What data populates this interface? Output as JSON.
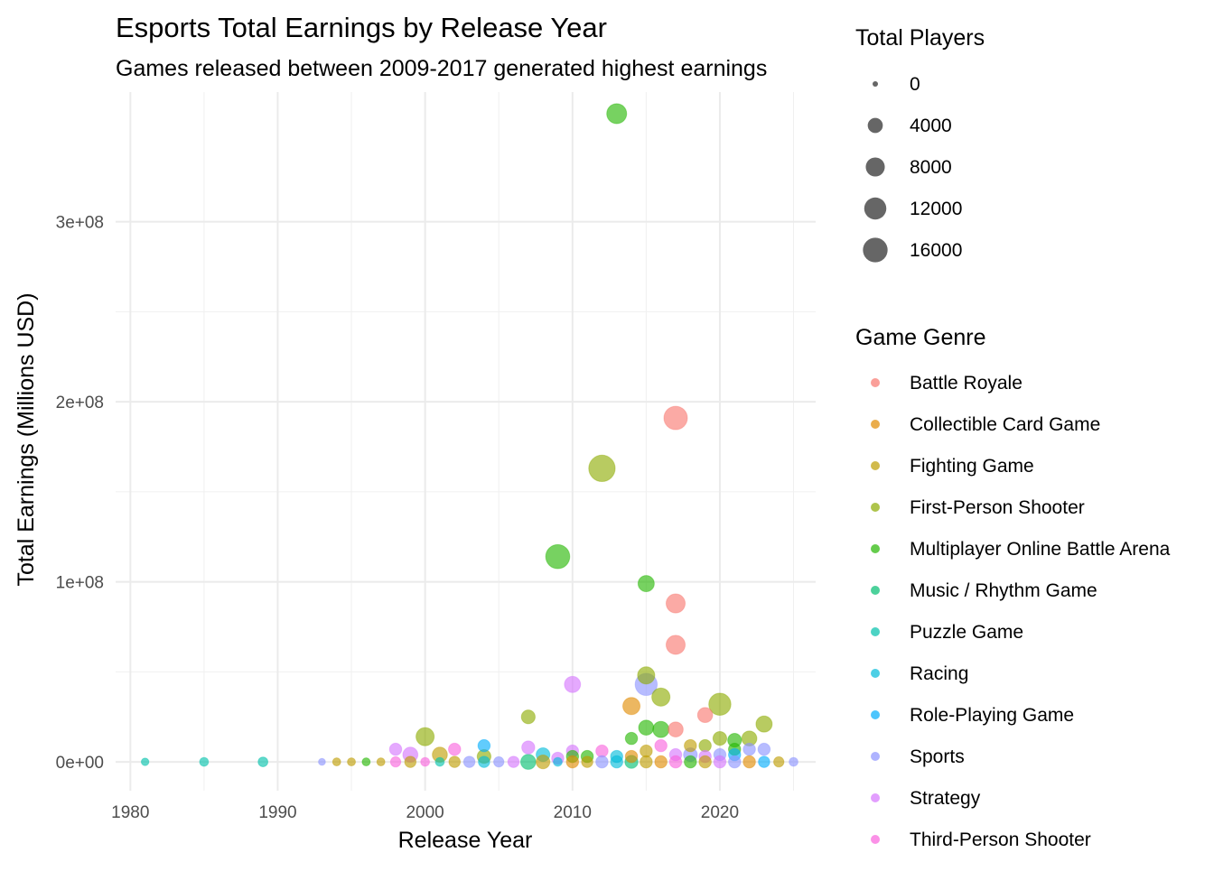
{
  "chart_data": {
    "type": "scatter",
    "title": "Esports Total Earnings by Release Year",
    "subtitle": "Games released between 2009-2017 generated highest earnings",
    "xlabel": "Release Year",
    "ylabel": "Total Earnings (Millions USD)",
    "xlim": [
      1979,
      2026.5
    ],
    "ylim": [
      -16000000,
      372000000
    ],
    "x_ticks": [
      1980,
      1990,
      2000,
      2010,
      2020
    ],
    "x_tick_labels": [
      "1980",
      "1990",
      "2000",
      "2010",
      "2020"
    ],
    "y_ticks": [
      0,
      100000000,
      200000000,
      300000000
    ],
    "y_tick_labels": [
      "0e+00",
      "1e+08",
      "2e+08",
      "3e+08"
    ],
    "grid": true,
    "legend_position": "right",
    "size_legend": {
      "title": "Total Players",
      "values": [
        0,
        4000,
        8000,
        12000,
        16000
      ],
      "labels": [
        "0",
        "4000",
        "8000",
        "12000",
        "16000"
      ]
    },
    "color_legend": {
      "title": "Game Genre",
      "entries": [
        {
          "name": "Battle Royale",
          "color": "#F8766D"
        },
        {
          "name": "Collectible Card Game",
          "color": "#E18A00"
        },
        {
          "name": "Fighting Game",
          "color": "#BE9C00"
        },
        {
          "name": "First-Person Shooter",
          "color": "#8CAB00"
        },
        {
          "name": "Multiplayer Online Battle Arena",
          "color": "#24B700"
        },
        {
          "name": "Music / Rhythm Game",
          "color": "#00BE70"
        },
        {
          "name": "Puzzle Game",
          "color": "#00C1AB"
        },
        {
          "name": "Racing",
          "color": "#00BBDA"
        },
        {
          "name": "Role-Playing Game",
          "color": "#00ACFC"
        },
        {
          "name": "Sports",
          "color": "#8B93FF"
        },
        {
          "name": "Strategy",
          "color": "#D575FE"
        },
        {
          "name": "Third-Person Shooter",
          "color": "#F962DD"
        }
      ]
    },
    "points": [
      {
        "x": 2013,
        "y": 360000000,
        "players": 9000,
        "genre": "Multiplayer Online Battle Arena"
      },
      {
        "x": 2017,
        "y": 191000000,
        "players": 14000,
        "genre": "Battle Royale"
      },
      {
        "x": 2012,
        "y": 163000000,
        "players": 19000,
        "genre": "First-Person Shooter"
      },
      {
        "x": 2009,
        "y": 114000000,
        "players": 15000,
        "genre": "Multiplayer Online Battle Arena"
      },
      {
        "x": 2015,
        "y": 99000000,
        "players": 5000,
        "genre": "Multiplayer Online Battle Arena"
      },
      {
        "x": 2017,
        "y": 88000000,
        "players": 8000,
        "genre": "Battle Royale"
      },
      {
        "x": 2017,
        "y": 65000000,
        "players": 8000,
        "genre": "Battle Royale"
      },
      {
        "x": 2015,
        "y": 48000000,
        "players": 6000,
        "genre": "First-Person Shooter"
      },
      {
        "x": 2015,
        "y": 43000000,
        "players": 12000,
        "genre": "Sports"
      },
      {
        "x": 2010,
        "y": 43000000,
        "players": 5000,
        "genre": "Strategy"
      },
      {
        "x": 2016,
        "y": 36000000,
        "players": 7000,
        "genre": "First-Person Shooter"
      },
      {
        "x": 2020,
        "y": 32000000,
        "players": 12000,
        "genre": "First-Person Shooter"
      },
      {
        "x": 2014,
        "y": 31000000,
        "players": 6000,
        "genre": "Collectible Card Game"
      },
      {
        "x": 2019,
        "y": 26000000,
        "players": 4000,
        "genre": "Battle Royale"
      },
      {
        "x": 2007,
        "y": 25000000,
        "players": 3000,
        "genre": "First-Person Shooter"
      },
      {
        "x": 2023,
        "y": 21000000,
        "players": 5000,
        "genre": "First-Person Shooter"
      },
      {
        "x": 2015,
        "y": 19000000,
        "players": 4000,
        "genre": "Multiplayer Online Battle Arena"
      },
      {
        "x": 2016,
        "y": 18000000,
        "players": 5000,
        "genre": "Multiplayer Online Battle Arena"
      },
      {
        "x": 2017,
        "y": 18000000,
        "players": 4000,
        "genre": "Battle Royale"
      },
      {
        "x": 2000,
        "y": 14000000,
        "players": 7000,
        "genre": "First-Person Shooter"
      },
      {
        "x": 2014,
        "y": 13000000,
        "players": 2000,
        "genre": "Multiplayer Online Battle Arena"
      },
      {
        "x": 2020,
        "y": 13000000,
        "players": 3000,
        "genre": "First-Person Shooter"
      },
      {
        "x": 2022,
        "y": 13000000,
        "players": 4000,
        "genre": "First-Person Shooter"
      },
      {
        "x": 2021,
        "y": 12000000,
        "players": 3000,
        "genre": "Multiplayer Online Battle Arena"
      },
      {
        "x": 2004,
        "y": 9000000,
        "players": 2000,
        "genre": "Role-Playing Game"
      },
      {
        "x": 2016,
        "y": 9000000,
        "players": 2000,
        "genre": "Third-Person Shooter"
      },
      {
        "x": 2018,
        "y": 9000000,
        "players": 2000,
        "genre": "Fighting Game"
      },
      {
        "x": 2019,
        "y": 9000000,
        "players": 2000,
        "genre": "First-Person Shooter"
      },
      {
        "x": 1998,
        "y": 7000000,
        "players": 2000,
        "genre": "Strategy"
      },
      {
        "x": 2007,
        "y": 8000000,
        "players": 2500,
        "genre": "Strategy"
      },
      {
        "x": 2002,
        "y": 7000000,
        "players": 2000,
        "genre": "Third-Person Shooter"
      },
      {
        "x": 2010,
        "y": 6000000,
        "players": 2000,
        "genre": "Strategy"
      },
      {
        "x": 2012,
        "y": 6000000,
        "players": 2000,
        "genre": "Third-Person Shooter"
      },
      {
        "x": 2021,
        "y": 7000000,
        "players": 2000,
        "genre": "Multiplayer Online Battle Arena"
      },
      {
        "x": 2022,
        "y": 7000000,
        "players": 2000,
        "genre": "Sports"
      },
      {
        "x": 2023,
        "y": 7000000,
        "players": 2000,
        "genre": "Sports"
      },
      {
        "x": 2015,
        "y": 6000000,
        "players": 2000,
        "genre": "Fighting Game"
      },
      {
        "x": 1999,
        "y": 4000000,
        "players": 4000,
        "genre": "Strategy"
      },
      {
        "x": 2001,
        "y": 4000000,
        "players": 4000,
        "genre": "Fighting Game"
      },
      {
        "x": 2004,
        "y": 3000000,
        "players": 3000,
        "genre": "First-Person Shooter"
      },
      {
        "x": 2008,
        "y": 4000000,
        "players": 3000,
        "genre": "Racing"
      },
      {
        "x": 2010,
        "y": 3000000,
        "players": 2000,
        "genre": "Multiplayer Online Battle Arena"
      },
      {
        "x": 2011,
        "y": 3000000,
        "players": 2000,
        "genre": "Multiplayer Online Battle Arena"
      },
      {
        "x": 2013,
        "y": 3000000,
        "players": 2000,
        "genre": "Racing"
      },
      {
        "x": 2014,
        "y": 3000000,
        "players": 2000,
        "genre": "Collectible Card Game"
      },
      {
        "x": 2018,
        "y": 4000000,
        "players": 3000,
        "genre": "Sports"
      },
      {
        "x": 2020,
        "y": 4000000,
        "players": 2000,
        "genre": "Sports"
      },
      {
        "x": 2021,
        "y": 4000000,
        "players": 2000,
        "genre": "Role-Playing Game"
      },
      {
        "x": 2017,
        "y": 4000000,
        "players": 2000,
        "genre": "Strategy"
      },
      {
        "x": 2019,
        "y": 3000000,
        "players": 2000,
        "genre": "Strategy"
      },
      {
        "x": 2009,
        "y": 2000000,
        "players": 2000,
        "genre": "Strategy"
      },
      {
        "x": 1981,
        "y": 0,
        "players": 200,
        "genre": "Puzzle Game"
      },
      {
        "x": 1985,
        "y": 0,
        "players": 500,
        "genre": "Puzzle Game"
      },
      {
        "x": 1989,
        "y": 0,
        "players": 800,
        "genre": "Puzzle Game"
      },
      {
        "x": 1993,
        "y": 0,
        "players": 100,
        "genre": "Sports"
      },
      {
        "x": 1994,
        "y": 0,
        "players": 300,
        "genre": "Fighting Game"
      },
      {
        "x": 1995,
        "y": 0,
        "players": 300,
        "genre": "Fighting Game"
      },
      {
        "x": 1996,
        "y": 0,
        "players": 300,
        "genre": "Multiplayer Online Battle Arena"
      },
      {
        "x": 1997,
        "y": 0,
        "players": 300,
        "genre": "Fighting Game"
      },
      {
        "x": 1998,
        "y": 0,
        "players": 1000,
        "genre": "Third-Person Shooter"
      },
      {
        "x": 1999,
        "y": 0,
        "players": 1500,
        "genre": "Fighting Game"
      },
      {
        "x": 2000,
        "y": 0,
        "players": 500,
        "genre": "Third-Person Shooter"
      },
      {
        "x": 2001,
        "y": 0,
        "players": 500,
        "genre": "Puzzle Game"
      },
      {
        "x": 2002,
        "y": 0,
        "players": 1500,
        "genre": "Fighting Game"
      },
      {
        "x": 2003,
        "y": 0,
        "players": 1500,
        "genre": "Sports"
      },
      {
        "x": 2004,
        "y": 0,
        "players": 1500,
        "genre": "Racing"
      },
      {
        "x": 2005,
        "y": 0,
        "players": 1000,
        "genre": "Sports"
      },
      {
        "x": 2006,
        "y": 0,
        "players": 1500,
        "genre": "Strategy"
      },
      {
        "x": 2007,
        "y": 0,
        "players": 4000,
        "genre": "Music / Rhythm Game"
      },
      {
        "x": 2008,
        "y": 0,
        "players": 3000,
        "genre": "Fighting Game"
      },
      {
        "x": 2009,
        "y": 0,
        "players": 500,
        "genre": "Racing"
      },
      {
        "x": 2010,
        "y": 0,
        "players": 2000,
        "genre": "Collectible Card Game"
      },
      {
        "x": 2011,
        "y": 0,
        "players": 1500,
        "genre": "Fighting Game"
      },
      {
        "x": 2012,
        "y": 0,
        "players": 2000,
        "genre": "Sports"
      },
      {
        "x": 2013,
        "y": 0,
        "players": 2000,
        "genre": "Racing"
      },
      {
        "x": 2014,
        "y": 0,
        "players": 2500,
        "genre": "Music / Rhythm Game"
      },
      {
        "x": 2015,
        "y": 0,
        "players": 2000,
        "genre": "Fighting Game"
      },
      {
        "x": 2016,
        "y": 0,
        "players": 2000,
        "genre": "Collectible Card Game"
      },
      {
        "x": 2017,
        "y": 0,
        "players": 2000,
        "genre": "Third-Person Shooter"
      },
      {
        "x": 2018,
        "y": 0,
        "players": 2000,
        "genre": "Multiplayer Online Battle Arena"
      },
      {
        "x": 2019,
        "y": 0,
        "players": 2000,
        "genre": "Fighting Game"
      },
      {
        "x": 2020,
        "y": 0,
        "players": 2000,
        "genre": "Strategy"
      },
      {
        "x": 2021,
        "y": 0,
        "players": 2000,
        "genre": "Sports"
      },
      {
        "x": 2022,
        "y": 0,
        "players": 2000,
        "genre": "Collectible Card Game"
      },
      {
        "x": 2023,
        "y": 0,
        "players": 1500,
        "genre": "Role-Playing Game"
      },
      {
        "x": 2024,
        "y": 0,
        "players": 1000,
        "genre": "Fighting Game"
      },
      {
        "x": 2025,
        "y": 0,
        "players": 500,
        "genre": "Sports"
      }
    ]
  }
}
